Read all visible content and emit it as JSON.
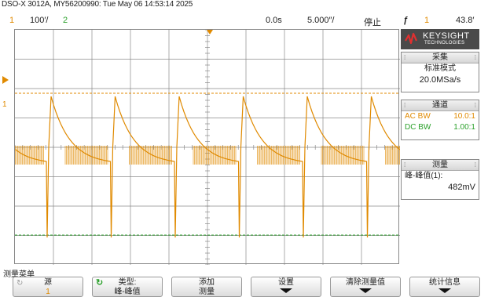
{
  "header": {
    "instrument": "DSO-X 3012A, MY56200990: Tue May 06 14:53:14 2025",
    "ch1_number": "1",
    "ch1_scale": "100′/",
    "ch2_number": "2",
    "time_offset": "0.0s",
    "time_scale": "5.000″/",
    "run_state": "停止",
    "trigger_symbol": "ƒ",
    "trigger_channel": "1",
    "trigger_level": "43.8′"
  },
  "logo": {
    "brand": "KEYSIGHT",
    "sub": "TECHNOLOGIES"
  },
  "acquisition": {
    "title": "采集",
    "mode": "标准模式",
    "rate": "20.0MSa/s"
  },
  "channels": {
    "title": "通道",
    "rows": [
      {
        "label": "AC BW",
        "value": "10.0:1"
      },
      {
        "label": "DC BW",
        "value": "1.00:1"
      }
    ]
  },
  "measure": {
    "title": "测量",
    "item": "峰-峰值(1):",
    "value": "482mV"
  },
  "menu": {
    "title": "测量菜单",
    "softkeys": [
      {
        "l1": "源",
        "l2": "1"
      },
      {
        "l1": "类型:",
        "l2": "峰-峰值"
      },
      {
        "l1": "添加",
        "l2": "测量"
      },
      {
        "l1": "设置",
        "l2": ""
      },
      {
        "l1": "清除测量值",
        "l2": ""
      },
      {
        "l1": "统计信息",
        "l2": ""
      }
    ]
  },
  "colors": {
    "ch1": "#e08a00",
    "ch2": "#2aa02a",
    "grid": "#888888"
  }
}
